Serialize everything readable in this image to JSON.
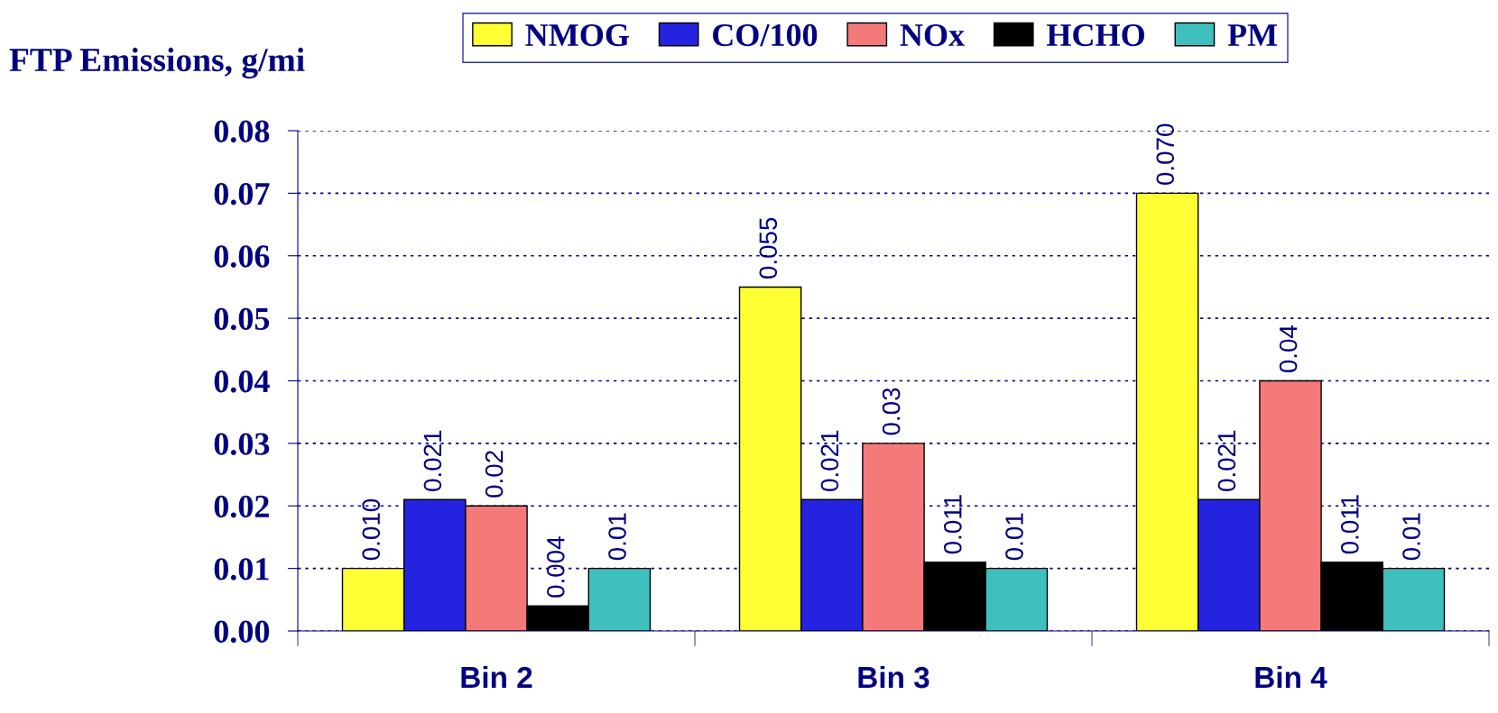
{
  "chart_data": {
    "type": "bar",
    "ylabel": "FTP Emissions, g/mi",
    "categories": [
      "Bin 2",
      "Bin 3",
      "Bin 4"
    ],
    "series": [
      {
        "name": "NMOG",
        "color": "#ffff33",
        "values": [
          0.01,
          0.055,
          0.07
        ],
        "value_labels": [
          "0.010",
          "0.055",
          "0.070"
        ]
      },
      {
        "name": "CO/100",
        "color": "#2424e0",
        "values": [
          0.021,
          0.021,
          0.021
        ],
        "value_labels": [
          "0.021",
          "0.021",
          "0.021"
        ]
      },
      {
        "name": "NOx",
        "color": "#f47a7a",
        "values": [
          0.02,
          0.03,
          0.04
        ],
        "value_labels": [
          "0.02",
          "0.03",
          "0.04"
        ]
      },
      {
        "name": "HCHO",
        "color": "#000000",
        "values": [
          0.004,
          0.011,
          0.011
        ],
        "value_labels": [
          "0.004",
          "0.011",
          "0.011"
        ]
      },
      {
        "name": "PM",
        "color": "#40bfbf",
        "values": [
          0.01,
          0.01,
          0.01
        ],
        "value_labels": [
          "0.01",
          "0.01",
          "0.01"
        ]
      }
    ],
    "ylim": [
      0,
      0.08
    ],
    "yticks": [
      {
        "value": 0,
        "label": "0.00"
      },
      0.01,
      0.02,
      0.03,
      0.04,
      0.05,
      0.06,
      0.07,
      0.08
    ],
    "grid": "y",
    "legend": "top"
  }
}
